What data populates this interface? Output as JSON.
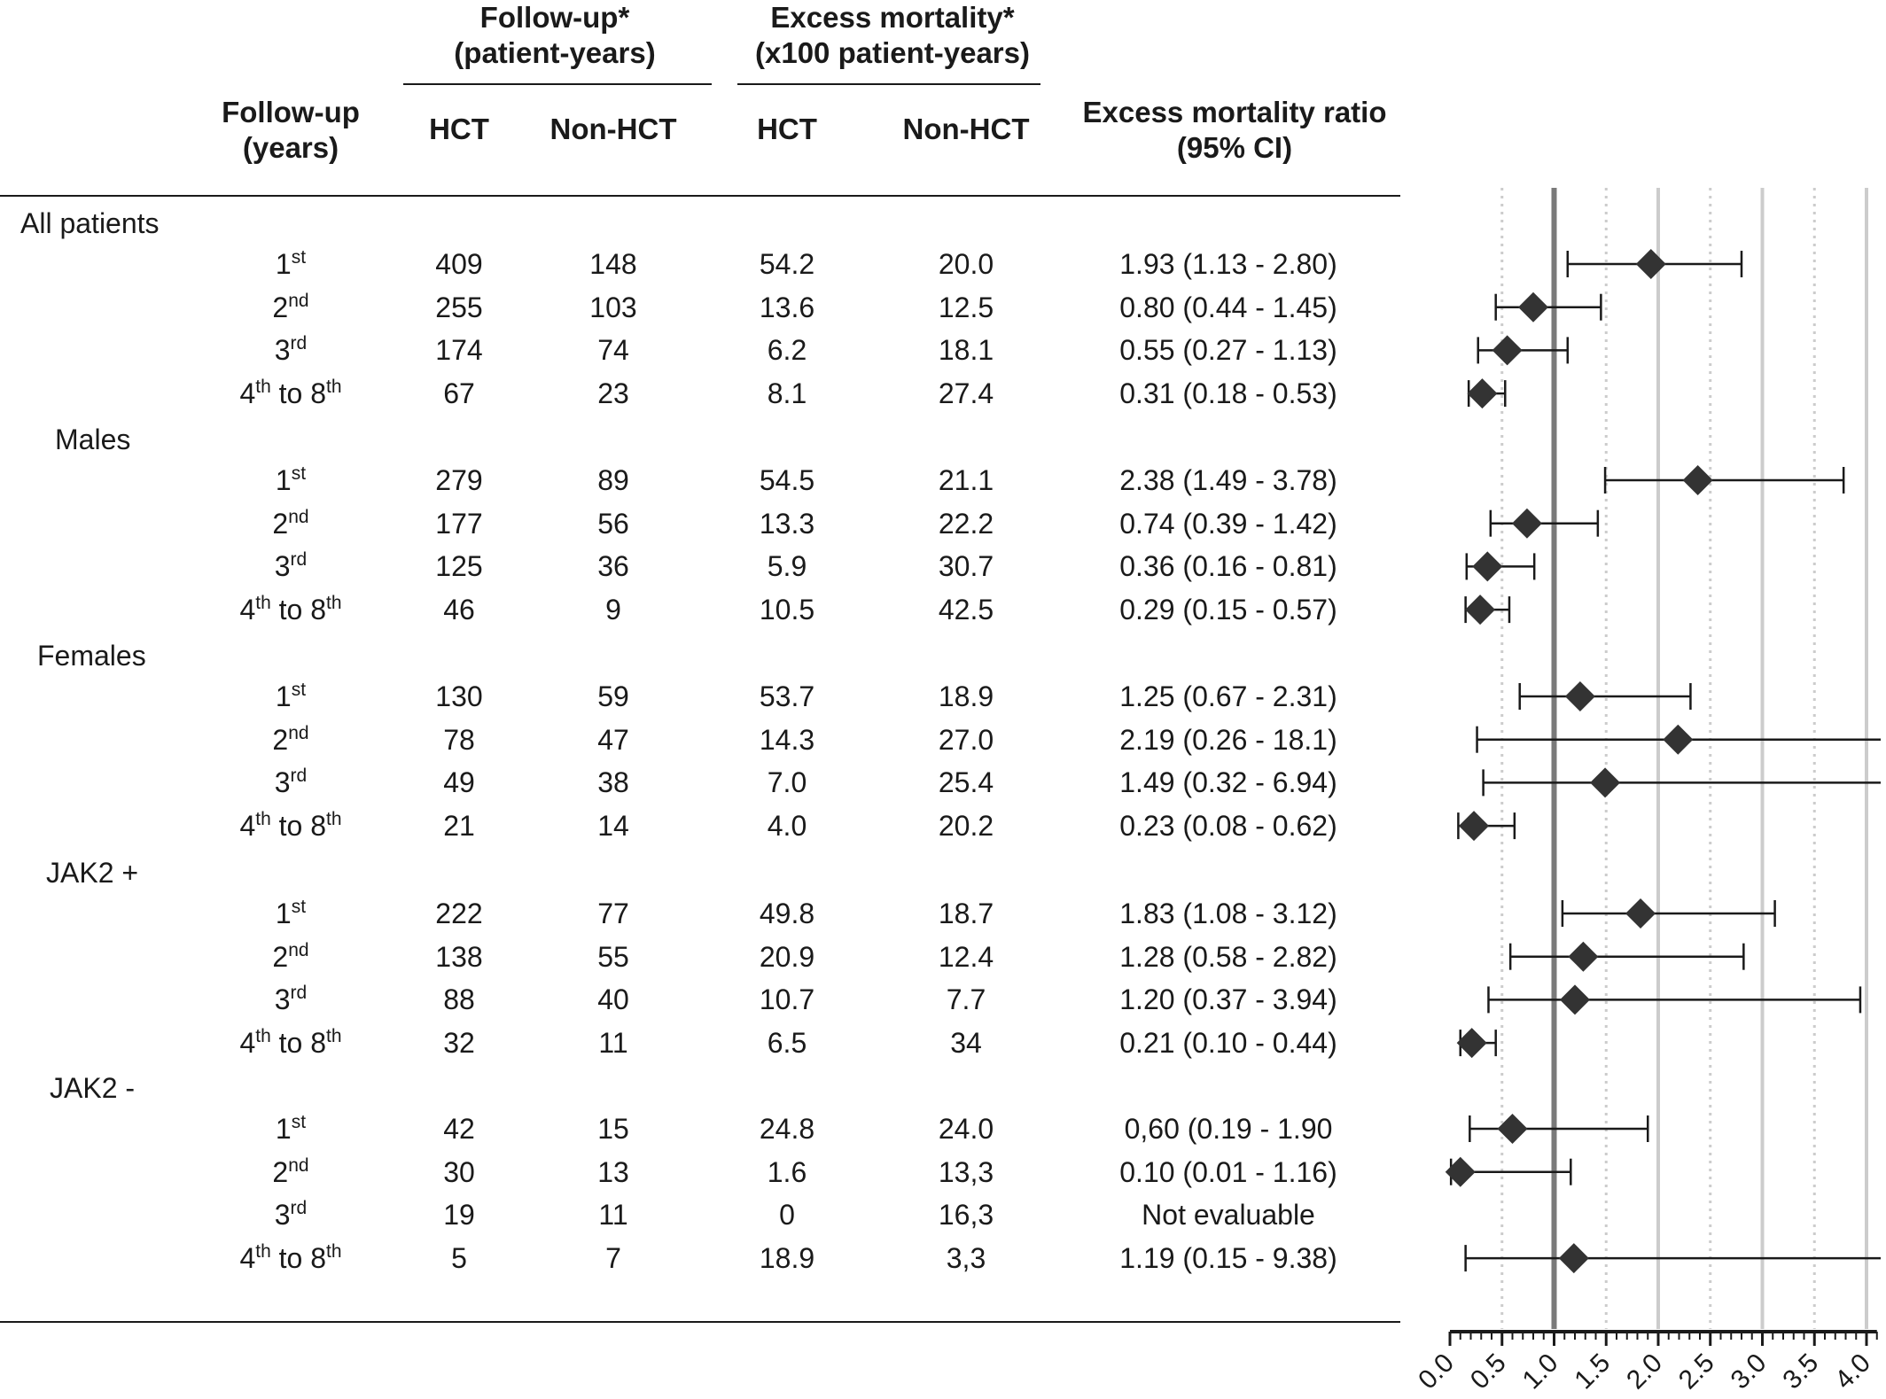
{
  "table": {
    "header": {
      "followup_group": "Follow-up*\n(patient-years)",
      "excess_group": "Excess mortality*\n(x100 patient-years)",
      "followup_years": "Follow-up\n(years)",
      "hct1": "HCT",
      "nonhct1": "Non-HCT",
      "hct2": "HCT",
      "nonhct2": "Non-HCT",
      "ratio": "Excess mortality ratio\n(95% CI)"
    },
    "groups": [
      {
        "name": "All patients",
        "rows": [
          {
            "year": "1",
            "suffix": "st",
            "fu_hct": "409",
            "fu_non": "148",
            "em_hct": "54.2",
            "em_non": "20.0",
            "ratio": "1.93 (1.13 - 2.80)"
          },
          {
            "year": "2",
            "suffix": "nd",
            "fu_hct": "255",
            "fu_non": "103",
            "em_hct": "13.6",
            "em_non": "12.5",
            "ratio": "0.80 (0.44 - 1.45)"
          },
          {
            "year": "3",
            "suffix": "rd",
            "fu_hct": "174",
            "fu_non": "74",
            "em_hct": "6.2",
            "em_non": "18.1",
            "ratio": "0.55 (0.27 - 1.13)"
          },
          {
            "year": "4",
            "suffix": "th",
            "year2": " to 8",
            "suffix2": "th",
            "fu_hct": "67",
            "fu_non": "23",
            "em_hct": "8.1",
            "em_non": "27.4",
            "ratio": "0.31 (0.18 - 0.53)"
          }
        ]
      },
      {
        "name": "Males",
        "rows": [
          {
            "year": "1",
            "suffix": "st",
            "fu_hct": "279",
            "fu_non": "89",
            "em_hct": "54.5",
            "em_non": "21.1",
            "ratio": "2.38 (1.49 - 3.78)"
          },
          {
            "year": "2",
            "suffix": "nd",
            "fu_hct": "177",
            "fu_non": "56",
            "em_hct": "13.3",
            "em_non": "22.2",
            "ratio": "0.74 (0.39 - 1.42)"
          },
          {
            "year": "3",
            "suffix": "rd",
            "fu_hct": "125",
            "fu_non": "36",
            "em_hct": "5.9",
            "em_non": "30.7",
            "ratio": "0.36 (0.16 - 0.81)"
          },
          {
            "year": "4",
            "suffix": "th",
            "year2": " to 8",
            "suffix2": "th",
            "fu_hct": "46",
            "fu_non": "9",
            "em_hct": "10.5",
            "em_non": "42.5",
            "ratio": "0.29 (0.15 - 0.57)"
          }
        ]
      },
      {
        "name": "Females",
        "rows": [
          {
            "year": "1",
            "suffix": "st",
            "fu_hct": "130",
            "fu_non": "59",
            "em_hct": "53.7",
            "em_non": "18.9",
            "ratio": "1.25 (0.67 - 2.31)"
          },
          {
            "year": "2",
            "suffix": "nd",
            "fu_hct": "78",
            "fu_non": "47",
            "em_hct": "14.3",
            "em_non": "27.0",
            "ratio": "2.19 (0.26 - 18.1)"
          },
          {
            "year": "3",
            "suffix": "rd",
            "fu_hct": "49",
            "fu_non": "38",
            "em_hct": "7.0",
            "em_non": "25.4",
            "ratio": "1.49 (0.32 - 6.94)"
          },
          {
            "year": "4",
            "suffix": "th",
            "year2": " to 8",
            "suffix2": "th",
            "fu_hct": "21",
            "fu_non": "14",
            "em_hct": "4.0",
            "em_non": "20.2",
            "ratio": "0.23 (0.08 - 0.62)"
          }
        ]
      },
      {
        "name": "JAK2 +",
        "rows": [
          {
            "year": "1",
            "suffix": "st",
            "fu_hct": "222",
            "fu_non": "77",
            "em_hct": "49.8",
            "em_non": "18.7",
            "ratio": "1.83 (1.08 - 3.12)"
          },
          {
            "year": "2",
            "suffix": "nd",
            "fu_hct": "138",
            "fu_non": "55",
            "em_hct": "20.9",
            "em_non": "12.4",
            "ratio": "1.28 (0.58 - 2.82)"
          },
          {
            "year": "3",
            "suffix": "rd",
            "fu_hct": "88",
            "fu_non": "40",
            "em_hct": "10.7",
            "em_non": "7.7",
            "ratio": "1.20 (0.37 - 3.94)"
          },
          {
            "year": "4",
            "suffix": "th",
            "year2": " to 8",
            "suffix2": "th",
            "fu_hct": "32",
            "fu_non": "11",
            "em_hct": "6.5",
            "em_non": "34",
            "ratio": "0.21 (0.10 - 0.44)"
          }
        ]
      },
      {
        "name": "JAK2 -",
        "rows": [
          {
            "year": "1",
            "suffix": "st",
            "fu_hct": "42",
            "fu_non": "15",
            "em_hct": "24.8",
            "em_non": "24.0",
            "ratio": "0,60 (0.19 - 1.90"
          },
          {
            "year": "2",
            "suffix": "nd",
            "fu_hct": "30",
            "fu_non": "13",
            "em_hct": "1.6",
            "em_non": "13,3",
            "ratio": "0.10 (0.01 - 1.16)"
          },
          {
            "year": "3",
            "suffix": "rd",
            "fu_hct": "19",
            "fu_non": "11",
            "em_hct": "0",
            "em_non": "16,3",
            "ratio": "Not evaluable"
          },
          {
            "year": "4",
            "suffix": "th",
            "year2": " to 8",
            "suffix2": "th",
            "fu_hct": "5",
            "fu_non": "7",
            "em_hct": "18.9",
            "em_non": "3,3",
            "ratio": "1.19 (0.15 - 9.38)"
          }
        ]
      }
    ]
  },
  "chart_data": {
    "type": "forest",
    "xlim": [
      0,
      4.1
    ],
    "x_ticks": [
      "0.0",
      "0.5",
      "1.0",
      "1.5",
      "2.0",
      "2.5",
      "3.0",
      "3.5",
      "4.0"
    ],
    "reference_line": 1.0,
    "grid": "vertical lines at each 0.5 (dotted at half units, solid at whole units)",
    "series": [
      {
        "group": "All patients",
        "points": [
          {
            "est": 1.93,
            "lo": 1.13,
            "hi": 2.8
          },
          {
            "est": 0.8,
            "lo": 0.44,
            "hi": 1.45
          },
          {
            "est": 0.55,
            "lo": 0.27,
            "hi": 1.13
          },
          {
            "est": 0.31,
            "lo": 0.18,
            "hi": 0.53
          }
        ]
      },
      {
        "group": "Males",
        "points": [
          {
            "est": 2.38,
            "lo": 1.49,
            "hi": 3.78
          },
          {
            "est": 0.74,
            "lo": 0.39,
            "hi": 1.42
          },
          {
            "est": 0.36,
            "lo": 0.16,
            "hi": 0.81
          },
          {
            "est": 0.29,
            "lo": 0.15,
            "hi": 0.57
          }
        ]
      },
      {
        "group": "Females",
        "points": [
          {
            "est": 1.25,
            "lo": 0.67,
            "hi": 2.31
          },
          {
            "est": 2.19,
            "lo": 0.26,
            "hi": 18.1
          },
          {
            "est": 1.49,
            "lo": 0.32,
            "hi": 6.94
          },
          {
            "est": 0.23,
            "lo": 0.08,
            "hi": 0.62
          }
        ]
      },
      {
        "group": "JAK2 +",
        "points": [
          {
            "est": 1.83,
            "lo": 1.08,
            "hi": 3.12
          },
          {
            "est": 1.28,
            "lo": 0.58,
            "hi": 2.82
          },
          {
            "est": 1.2,
            "lo": 0.37,
            "hi": 3.94
          },
          {
            "est": 0.21,
            "lo": 0.1,
            "hi": 0.44
          }
        ]
      },
      {
        "group": "JAK2 -",
        "points": [
          {
            "est": 0.6,
            "lo": 0.19,
            "hi": 1.9
          },
          {
            "est": 0.1,
            "lo": 0.01,
            "hi": 1.16
          },
          null,
          {
            "est": 1.19,
            "lo": 0.15,
            "hi": 9.38
          }
        ]
      }
    ],
    "colors": {
      "marker": "#333333",
      "refline": "#7a7a7a",
      "grid": "#cccccc"
    }
  }
}
